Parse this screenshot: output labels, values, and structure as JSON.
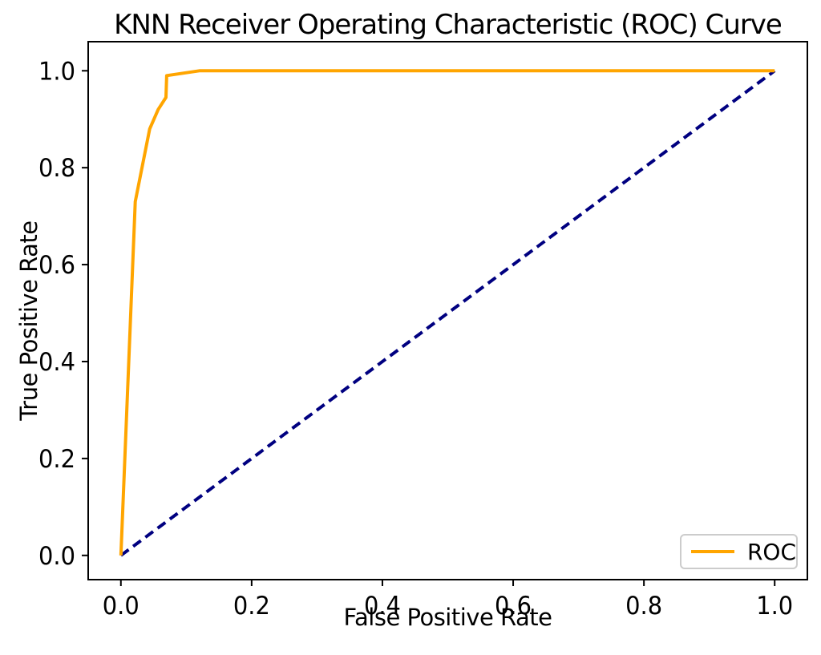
{
  "figure": {
    "title": "KNN Receiver Operating Characteristic (ROC) Curve",
    "xlabel": "False Positive Rate",
    "ylabel": "True Positive Rate"
  },
  "legend": {
    "position": "lower right",
    "entries": [
      {
        "label": "ROC",
        "color": "#FFA500"
      }
    ]
  },
  "colors": {
    "roc_curve": "#FFA500",
    "chance_diagonal": "#000080",
    "axes": "#000000",
    "background": "#FFFFFF",
    "legend_border": "#CCCCCC"
  },
  "chart_data": {
    "type": "line",
    "title": "KNN Receiver Operating Characteristic (ROC) Curve",
    "xlabel": "False Positive Rate",
    "ylabel": "True Positive Rate",
    "xlim": [
      -0.05,
      1.05
    ],
    "ylim": [
      -0.05,
      1.06
    ],
    "xticks": [
      0.0,
      0.2,
      0.4,
      0.6,
      0.8,
      1.0
    ],
    "yticks": [
      0.0,
      0.2,
      0.4,
      0.6,
      0.8,
      1.0
    ],
    "grid": false,
    "legend_position": "lower right",
    "series": [
      {
        "name": "chance-diagonal",
        "color": "#000080",
        "style": "dashed",
        "in_legend": false,
        "points": [
          [
            0.0,
            0.0
          ],
          [
            1.0,
            1.0
          ]
        ]
      },
      {
        "name": "ROC",
        "color": "#FFA500",
        "style": "solid",
        "in_legend": true,
        "points": [
          [
            0.0,
            0.0
          ],
          [
            0.022,
            0.73
          ],
          [
            0.044,
            0.88
          ],
          [
            0.057,
            0.92
          ],
          [
            0.069,
            0.945
          ],
          [
            0.07,
            0.99
          ],
          [
            0.12,
            1.0
          ],
          [
            1.0,
            1.0
          ]
        ]
      }
    ]
  }
}
